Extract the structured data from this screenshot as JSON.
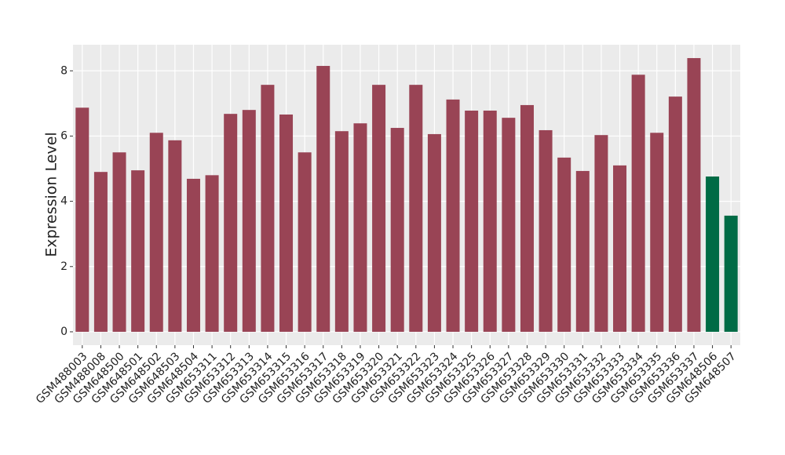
{
  "chart_data": {
    "type": "bar",
    "y_label": "Expression Level",
    "categories": [
      "GSM488003",
      "GSM488008",
      "GSM648500",
      "GSM648501",
      "GSM648502",
      "GSM648503",
      "GSM648504",
      "GSM653311",
      "GSM653312",
      "GSM653313",
      "GSM653314",
      "GSM653315",
      "GSM653316",
      "GSM653317",
      "GSM653318",
      "GSM653319",
      "GSM653320",
      "GSM653321",
      "GSM653322",
      "GSM653323",
      "GSM653324",
      "GSM653325",
      "GSM653326",
      "GSM653327",
      "GSM653328",
      "GSM653329",
      "GSM653330",
      "GSM653331",
      "GSM653332",
      "GSM653333",
      "GSM653334",
      "GSM653335",
      "GSM653336",
      "GSM653337",
      "GSM648506",
      "GSM648507"
    ],
    "values": [
      6.87,
      4.9,
      5.5,
      4.95,
      6.1,
      5.87,
      4.69,
      4.8,
      6.68,
      6.8,
      7.57,
      6.66,
      5.5,
      8.15,
      6.15,
      6.39,
      7.57,
      6.25,
      7.57,
      6.06,
      7.12,
      6.78,
      6.78,
      6.56,
      6.95,
      6.18,
      5.34,
      4.93,
      6.03,
      5.1,
      7.88,
      6.1,
      7.21,
      8.39,
      4.76,
      3.56
    ],
    "colors": [
      "#994455",
      "#994455",
      "#994455",
      "#994455",
      "#994455",
      "#994455",
      "#994455",
      "#994455",
      "#994455",
      "#994455",
      "#994455",
      "#994455",
      "#994455",
      "#994455",
      "#994455",
      "#994455",
      "#994455",
      "#994455",
      "#994455",
      "#994455",
      "#994455",
      "#994455",
      "#994455",
      "#994455",
      "#994455",
      "#994455",
      "#994455",
      "#994455",
      "#994455",
      "#994455",
      "#994455",
      "#994455",
      "#994455",
      "#994455",
      "#006b45",
      "#006b45"
    ],
    "ylim": [
      -0.41,
      8.8
    ],
    "yticks": [
      0,
      2,
      4,
      6,
      8
    ],
    "grid": true
  }
}
